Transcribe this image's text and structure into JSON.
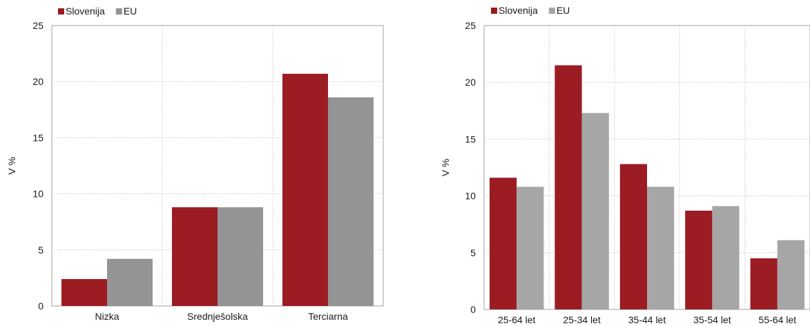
{
  "chart_data": [
    {
      "type": "bar",
      "categories": [
        "Nizka",
        "Srednješolska",
        "Terciarna"
      ],
      "series": [
        {
          "name": "Slovenija",
          "values": [
            2.4,
            8.8,
            20.7
          ]
        },
        {
          "name": "EU",
          "values": [
            4.2,
            8.8,
            18.6
          ]
        }
      ],
      "ylabel": "V %",
      "ylim": [
        0,
        25
      ],
      "yticks": [
        0,
        5,
        10,
        15,
        20,
        25
      ],
      "grid": true,
      "legend": "top-left"
    },
    {
      "type": "bar",
      "categories": [
        "25-64 let",
        "25-34 let",
        "35-44 let",
        "35-54 let",
        "55-64 let"
      ],
      "series": [
        {
          "name": "Slovenija",
          "values": [
            11.6,
            21.5,
            12.8,
            8.7,
            4.5
          ]
        },
        {
          "name": "EU",
          "values": [
            10.8,
            17.3,
            10.8,
            9.1,
            6.1
          ]
        }
      ],
      "ylabel": "V %",
      "ylim": [
        0,
        25
      ],
      "yticks": [
        0,
        5,
        10,
        15,
        20,
        25
      ],
      "grid": true,
      "legend": "top-left"
    }
  ],
  "colors": {
    "chart1": [
      "#9b1c22",
      "#949494"
    ],
    "chart2": [
      "#9b1c22",
      "#a6a6a6"
    ]
  }
}
